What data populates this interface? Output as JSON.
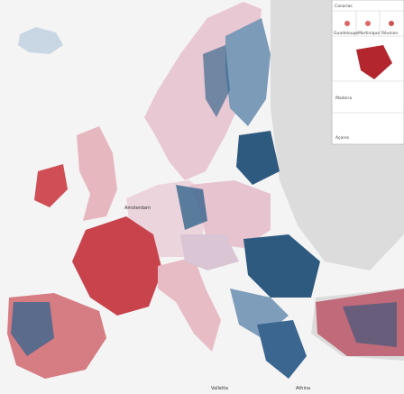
{
  "map": {
    "labels": [
      "Amsterdam",
      "Valletta",
      "Athina"
    ],
    "insets": {
      "labels": [
        "Canarias",
        "Guadeloupe",
        "Martinique",
        "Réunion",
        "Madeira",
        "Açores"
      ]
    }
  }
}
